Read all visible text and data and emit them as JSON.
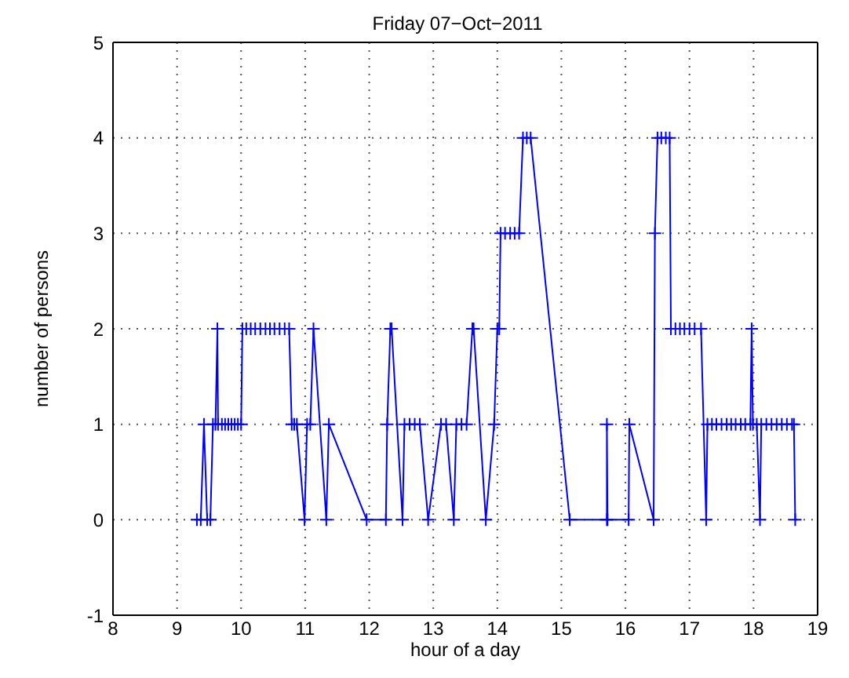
{
  "chart_data": {
    "type": "line",
    "title": "Friday 07−Oct−2011",
    "xlabel": "hour of a day",
    "ylabel": "number of persons",
    "x": [
      9.31,
      9.37,
      9.42,
      9.47,
      9.52,
      9.56,
      9.6,
      9.63,
      9.64,
      9.7,
      9.75,
      9.8,
      9.85,
      9.9,
      9.95,
      10.0,
      10.02,
      10.08,
      10.15,
      10.22,
      10.3,
      10.38,
      10.45,
      10.52,
      10.6,
      10.68,
      10.75,
      10.79,
      10.83,
      10.87,
      10.99,
      11.03,
      11.08,
      11.13,
      11.33,
      11.37,
      11.96,
      12.26,
      12.28,
      12.33,
      12.35,
      12.52,
      12.55,
      12.63,
      12.71,
      12.79,
      12.92,
      13.12,
      13.2,
      13.32,
      13.36,
      13.44,
      13.52,
      13.61,
      13.63,
      13.82,
      13.95,
      14.0,
      14.03,
      14.05,
      14.12,
      14.2,
      14.27,
      14.34,
      14.4,
      14.46,
      14.52,
      15.13,
      15.71,
      15.71,
      15.72,
      16.05,
      16.06,
      16.44,
      16.46,
      16.5,
      16.56,
      16.63,
      16.69,
      16.71,
      16.78,
      16.85,
      16.92,
      17.0,
      17.08,
      17.18,
      17.26,
      17.28,
      17.35,
      17.42,
      17.5,
      17.58,
      17.65,
      17.72,
      17.8,
      17.87,
      17.95,
      17.97,
      17.99,
      18.05,
      18.1,
      18.12,
      18.2,
      18.28,
      18.36,
      18.44,
      18.52,
      18.6,
      18.63,
      18.65
    ],
    "values": [
      0,
      0,
      1,
      0,
      0,
      1,
      1,
      2,
      1,
      1,
      1,
      1,
      1,
      1,
      1,
      1,
      2,
      2,
      2,
      2,
      2,
      2,
      2,
      2,
      2,
      2,
      2,
      1,
      1,
      1,
      0,
      1,
      1,
      2,
      0,
      1,
      0,
      0,
      1,
      2,
      2,
      0,
      1,
      1,
      1,
      1,
      0,
      1,
      1,
      0,
      1,
      1,
      1,
      2,
      2,
      0,
      1,
      2,
      2,
      3,
      3,
      3,
      3,
      3,
      4,
      4,
      4,
      0,
      0,
      1,
      0,
      0,
      1,
      0,
      3,
      4,
      4,
      4,
      4,
      2,
      2,
      2,
      2,
      2,
      2,
      2,
      0,
      1,
      1,
      1,
      1,
      1,
      1,
      1,
      1,
      1,
      1,
      2,
      1,
      1,
      0,
      1,
      1,
      1,
      1,
      1,
      1,
      1,
      1,
      0
    ],
    "color": "#0000ff",
    "marker": "cross",
    "line_style": "solid",
    "grid": true,
    "xlim": [
      8,
      19
    ],
    "xticks": [
      8,
      9,
      10,
      11,
      12,
      13,
      14,
      15,
      16,
      17,
      18,
      19
    ],
    "ylim": [
      -1,
      5
    ],
    "yticks": [
      -1,
      0,
      1,
      2,
      3,
      4,
      5
    ]
  }
}
